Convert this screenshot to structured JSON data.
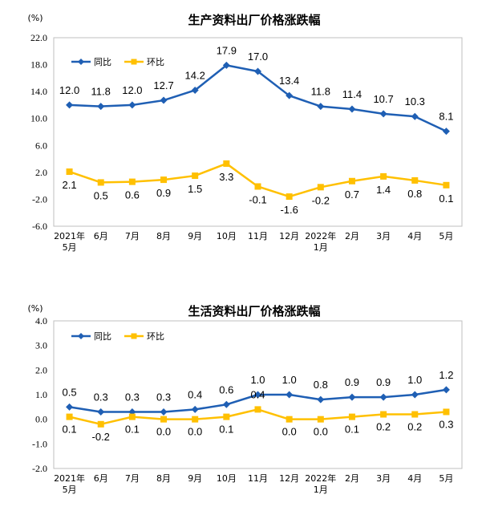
{
  "chart_data": [
    {
      "type": "line",
      "title": "生产资料出厂价格涨跌幅",
      "unit": "(%)",
      "categories": [
        "2021年\n5月",
        "6月",
        "7月",
        "8月",
        "9月",
        "10月",
        "11月",
        "12月",
        "2022年\n1月",
        "2月",
        "3月",
        "4月",
        "5月"
      ],
      "ylim": [
        -6.0,
        22.0
      ],
      "yticks": [
        "22.0",
        "18.0",
        "14.0",
        "10.0",
        "6.0",
        "2.0",
        "-2.0",
        "-6.0"
      ],
      "legend_position": "top-left",
      "grid": false,
      "series": [
        {
          "name": "同比",
          "color": "#1f5fb4",
          "marker": "diamond",
          "values": [
            12.0,
            11.8,
            12.0,
            12.7,
            14.2,
            17.9,
            17.0,
            13.4,
            11.8,
            11.4,
            10.7,
            10.3,
            8.1
          ],
          "labels": [
            "12.0",
            "11.8",
            "12.0",
            "12.7",
            "14.2",
            "17.9",
            "17.0",
            "13.4",
            "11.8",
            "11.4",
            "10.7",
            "10.3",
            "8.1"
          ]
        },
        {
          "name": "环比",
          "color": "#ffc000",
          "marker": "square",
          "values": [
            2.1,
            0.5,
            0.6,
            0.9,
            1.5,
            3.3,
            -0.1,
            -1.6,
            -0.2,
            0.7,
            1.4,
            0.8,
            0.1
          ],
          "labels": [
            "2.1",
            "0.5",
            "0.6",
            "0.9",
            "1.5",
            "3.3",
            "-0.1",
            "-1.6",
            "-0.2",
            "0.7",
            "1.4",
            "0.8",
            "0.1"
          ]
        }
      ]
    },
    {
      "type": "line",
      "title": "生活资料出厂价格涨跌幅",
      "unit": "(%)",
      "categories": [
        "2021年\n5月",
        "6月",
        "7月",
        "8月",
        "9月",
        "10月",
        "11月",
        "12月",
        "2022年\n1月",
        "2月",
        "3月",
        "4月",
        "5月"
      ],
      "ylim": [
        -2.0,
        4.0
      ],
      "yticks": [
        "4.0",
        "3.0",
        "2.0",
        "1.0",
        "0.0",
        "-1.0",
        "-2.0"
      ],
      "legend_position": "top-left",
      "grid": false,
      "series": [
        {
          "name": "同比",
          "color": "#1f5fb4",
          "marker": "diamond",
          "values": [
            0.5,
            0.3,
            0.3,
            0.3,
            0.4,
            0.6,
            1.0,
            1.0,
            0.8,
            0.9,
            0.9,
            1.0,
            1.2
          ],
          "labels": [
            "0.5",
            "0.3",
            "0.3",
            "0.3",
            "0.4",
            "0.6",
            "1.0",
            "1.0",
            "0.8",
            "0.9",
            "0.9",
            "1.0",
            "1.2"
          ]
        },
        {
          "name": "环比",
          "color": "#ffc000",
          "marker": "square",
          "values": [
            0.1,
            -0.2,
            0.1,
            0.0,
            0.0,
            0.1,
            0.4,
            0.0,
            0.0,
            0.1,
            0.2,
            0.2,
            0.3
          ],
          "labels": [
            "0.1",
            "-0.2",
            "0.1",
            "0.0",
            "0.0",
            "0.1",
            "0.4",
            "0.0",
            "0.0",
            "0.1",
            "0.2",
            "0.2",
            "0.3"
          ]
        }
      ]
    }
  ]
}
